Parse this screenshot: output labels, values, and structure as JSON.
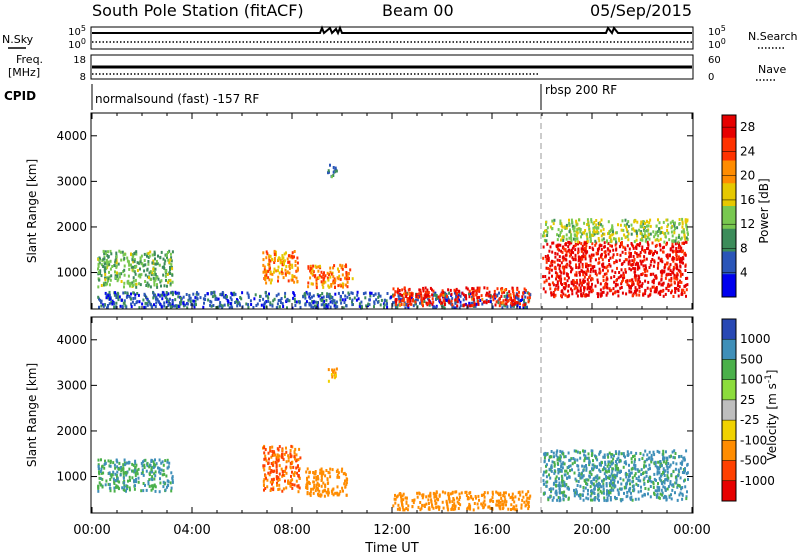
{
  "header": {
    "station": "South Pole Station (fitACF)",
    "beam": "Beam 00",
    "date": "05/Sep/2015"
  },
  "summary_panels": {
    "nsky_label": "N.Sky",
    "nsearch_label": "N.Search",
    "sky_ticks": [
      "10^5",
      "10^0"
    ],
    "search_ticks": [
      "10^5",
      "10^0"
    ],
    "freq_label_line1": "Freq.",
    "freq_label_line2": "[MHz]",
    "freq_ticks": [
      "18",
      "8"
    ],
    "nave_label": "Nave",
    "nave_ticks": [
      "60",
      "0"
    ],
    "cpid_label": "CPID",
    "cpid_segments": [
      {
        "start_hour": 0,
        "end_hour": 17.9,
        "text": "normalsound (fast) -157 RF"
      },
      {
        "start_hour": 17.9,
        "end_hour": 24,
        "text": "rbsp 200 RF"
      }
    ]
  },
  "chart_data": [
    {
      "type": "heatmap",
      "title": "",
      "xlabel": "Time UT",
      "ylabel": "Slant Range [km]",
      "xlim": [
        0,
        24
      ],
      "ylim": [
        200,
        4500
      ],
      "x_ticks": [
        "00:00",
        "04:00",
        "08:00",
        "12:00",
        "16:00",
        "20:00",
        "00:00"
      ],
      "y_ticks": [
        "1000",
        "2000",
        "3000",
        "4000"
      ],
      "colorbar": {
        "label": "Power [dB]",
        "ticks": [
          "4",
          "8",
          "12",
          "16",
          "20",
          "24",
          "28"
        ],
        "range": [
          0,
          30
        ],
        "colors": [
          "#0000ee",
          "#2a55b8",
          "#3c8c5a",
          "#78c850",
          "#e6c800",
          "#ff8c00",
          "#ff3200",
          "#e60000"
        ]
      },
      "regions": [
        {
          "t0": 0.2,
          "t1": 3.2,
          "r0": 700,
          "r1": 1500,
          "value": 12
        },
        {
          "t0": 0.2,
          "t1": 17.5,
          "r0": 250,
          "r1": 600,
          "value": 6
        },
        {
          "t0": 6.8,
          "t1": 8.2,
          "r0": 800,
          "r1": 1500,
          "value": 20
        },
        {
          "t0": 8.6,
          "t1": 10.4,
          "r0": 700,
          "r1": 1200,
          "value": 22
        },
        {
          "t0": 9.4,
          "t1": 9.8,
          "r0": 3100,
          "r1": 3400,
          "value": 8
        },
        {
          "t0": 12.0,
          "t1": 17.5,
          "r0": 300,
          "r1": 700,
          "value": 26
        },
        {
          "t0": 18.0,
          "t1": 23.8,
          "r0": 500,
          "r1": 1700,
          "value": 28
        },
        {
          "t0": 18.0,
          "t1": 23.8,
          "r0": 1700,
          "r1": 2200,
          "value": 14
        }
      ]
    },
    {
      "type": "heatmap",
      "title": "",
      "xlabel": "Time UT",
      "ylabel": "Slant Range [km]",
      "xlim": [
        0,
        24
      ],
      "ylim": [
        200,
        4500
      ],
      "x_ticks": [
        "00:00",
        "04:00",
        "08:00",
        "12:00",
        "16:00",
        "20:00",
        "00:00"
      ],
      "y_ticks": [
        "1000",
        "2000",
        "3000",
        "4000"
      ],
      "colorbar": {
        "label": "Velocity [m s^-1]",
        "ticks": [
          "1000",
          "500",
          "100",
          "25",
          "-25",
          "-100",
          "-500",
          "-1000"
        ],
        "colors": [
          "#2848b4",
          "#3f8fb8",
          "#4ab04a",
          "#8cdc3c",
          "#bebebe",
          "#f0d200",
          "#ff8c00",
          "#ff4000",
          "#e60000"
        ]
      },
      "regions": [
        {
          "t0": 0.2,
          "t1": 3.2,
          "r0": 700,
          "r1": 1400,
          "value": 500
        },
        {
          "t0": 6.8,
          "t1": 8.3,
          "r0": 700,
          "r1": 1700,
          "value": -500
        },
        {
          "t0": 8.5,
          "t1": 10.2,
          "r0": 600,
          "r1": 1200,
          "value": -300
        },
        {
          "t0": 9.4,
          "t1": 9.8,
          "r0": 3100,
          "r1": 3400,
          "value": -100
        },
        {
          "t0": 12.0,
          "t1": 17.5,
          "r0": 300,
          "r1": 700,
          "value": -200
        },
        {
          "t0": 18.0,
          "t1": 23.8,
          "r0": 500,
          "r1": 1600,
          "value": 600
        }
      ]
    }
  ]
}
